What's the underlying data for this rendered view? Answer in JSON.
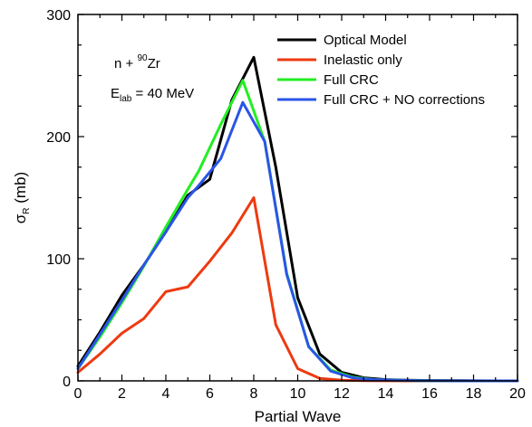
{
  "chart_data": {
    "type": "line",
    "title": "",
    "xlabel": "Partial Wave",
    "ylabel": {
      "main": "σ",
      "sub": "R",
      "rest": " (mb)"
    },
    "xlim": [
      0,
      20
    ],
    "ylim": [
      0,
      300
    ],
    "x_ticks": [
      0,
      2,
      4,
      6,
      8,
      10,
      12,
      14,
      16,
      18,
      20
    ],
    "y_ticks": [
      0,
      100,
      200,
      300
    ],
    "grid": false,
    "legend_position": "top-right",
    "annotations": {
      "reaction": {
        "pre": "n + ",
        "sup": "90",
        "post": "Zr"
      },
      "energy": {
        "pre": "E",
        "sub": "lab",
        "post": " = 40 MeV"
      }
    },
    "series": [
      {
        "name": "Optical Model",
        "color": "#000000",
        "x": [
          0,
          1,
          2,
          3,
          4,
          5,
          6,
          7,
          8,
          9,
          10,
          11,
          12,
          13,
          14,
          15,
          16,
          17,
          18,
          19,
          20
        ],
        "y": [
          12,
          40,
          70,
          95,
          122,
          152,
          165,
          230,
          265,
          175,
          68,
          22,
          7,
          2.5,
          1,
          0.5,
          0.3,
          0.2,
          0.1,
          0,
          0
        ]
      },
      {
        "name": "Inelastic only",
        "color": "#ee3a10",
        "x": [
          0,
          1,
          2,
          3,
          4,
          5,
          6,
          7,
          8,
          9,
          10,
          11,
          12,
          13,
          14,
          15,
          16,
          17,
          18,
          19,
          20
        ],
        "y": [
          7,
          22,
          39,
          51,
          73,
          77,
          98,
          121,
          150,
          46,
          10,
          2,
          0.5,
          0.2,
          0.1,
          0,
          0,
          0,
          0,
          0,
          0
        ]
      },
      {
        "name": "Full CRC",
        "color": "#22ee22",
        "x": [
          0,
          1,
          2,
          3,
          4,
          5,
          5.5,
          6.5,
          7.5,
          8.5,
          9.5,
          10.5,
          11.5,
          12.5,
          13.5,
          14.5,
          15.5,
          16.5,
          17.5,
          18.5,
          19.5,
          20
        ],
        "y": [
          10,
          36,
          64,
          94,
          126,
          157,
          172,
          210,
          246,
          196,
          88,
          28,
          9,
          3,
          1,
          0.5,
          0.2,
          0.1,
          0,
          0,
          0,
          0
        ]
      },
      {
        "name": "Full CRC + NO corrections",
        "color": "#2a55e8",
        "x": [
          0,
          1,
          2,
          3,
          4,
          5,
          5.5,
          6.5,
          7.5,
          8.5,
          9.5,
          10.5,
          11.5,
          12.5,
          13.5,
          14.5,
          15.5,
          16.5,
          17.5,
          18.5,
          19.5,
          20
        ],
        "y": [
          10,
          38,
          66,
          95,
          122,
          150,
          160,
          182,
          228,
          196,
          87,
          28,
          8,
          2.5,
          1,
          0.5,
          0.2,
          0.1,
          0,
          0,
          0,
          0
        ]
      }
    ]
  }
}
